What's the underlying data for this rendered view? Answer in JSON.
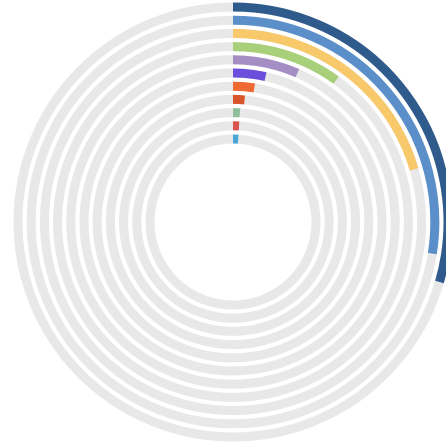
{
  "chart_data": {
    "type": "radial_bar",
    "scale_max": 100,
    "start_angle": "top",
    "direction": "clockwise",
    "track_color": "#e8e8e8",
    "grid": false,
    "legend": "none",
    "rings_outer_to_inner": [
      {
        "value": 29.5,
        "color": "#2e5a8c"
      },
      {
        "value": 27.5,
        "color": "#5b8fc9"
      },
      {
        "value": 20.5,
        "color": "#f7c96b"
      },
      {
        "value": 10.0,
        "color": "#a8cf7a"
      },
      {
        "value": 6.5,
        "color": "#a48ec4"
      },
      {
        "value": 3.5,
        "color": "#6b4fdc"
      },
      {
        "value": 2.5,
        "color": "#ef6a33"
      },
      {
        "value": 1.5,
        "color": "#d9542b"
      },
      {
        "value": 1.0,
        "color": "#8fbf9a"
      },
      {
        "value": 1.0,
        "color": "#d9534f"
      },
      {
        "value": 1.0,
        "color": "#4aa6d6"
      }
    ]
  }
}
